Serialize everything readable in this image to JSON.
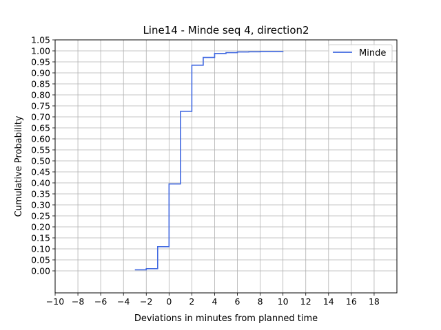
{
  "chart_data": {
    "type": "line",
    "step": "post",
    "title": "Line14 - Minde seq 4, direction2",
    "xlabel": "Deviations in minutes from planned time",
    "ylabel": "Cumulative Probability",
    "xlim": [
      -10,
      20
    ],
    "ylim": [
      -0.1,
      1.05
    ],
    "xticks": [
      -10,
      -8,
      -6,
      -4,
      -2,
      0,
      2,
      4,
      6,
      8,
      10,
      12,
      14,
      16,
      18
    ],
    "xtick_labels": [
      "−10",
      "−8",
      "−6",
      "−4",
      "−2",
      "0",
      "2",
      "4",
      "6",
      "8",
      "10",
      "12",
      "14",
      "16",
      "18"
    ],
    "yticks": [
      0.0,
      0.05,
      0.1,
      0.15,
      0.2,
      0.25,
      0.3,
      0.35,
      0.4,
      0.45,
      0.5,
      0.55,
      0.6,
      0.65,
      0.7,
      0.75,
      0.8,
      0.85,
      0.9,
      0.95,
      1.0,
      1.05
    ],
    "ytick_labels": [
      "0.00",
      "0.05",
      "0.10",
      "0.15",
      "0.20",
      "0.25",
      "0.30",
      "0.35",
      "0.40",
      "0.45",
      "0.50",
      "0.55",
      "0.60",
      "0.65",
      "0.70",
      "0.75",
      "0.80",
      "0.85",
      "0.90",
      "0.95",
      "1.00",
      "1.05"
    ],
    "grid": true,
    "legend_position": "top-right",
    "series": [
      {
        "name": "Minde",
        "color": "#4169e1",
        "x": [
          -3,
          -2,
          -1,
          0,
          1,
          2,
          3,
          4,
          5,
          6,
          7,
          8,
          9,
          10
        ],
        "y": [
          0.005,
          0.01,
          0.11,
          0.395,
          0.725,
          0.935,
          0.97,
          0.988,
          0.992,
          0.995,
          0.996,
          0.997,
          0.997,
          0.998
        ]
      }
    ]
  }
}
